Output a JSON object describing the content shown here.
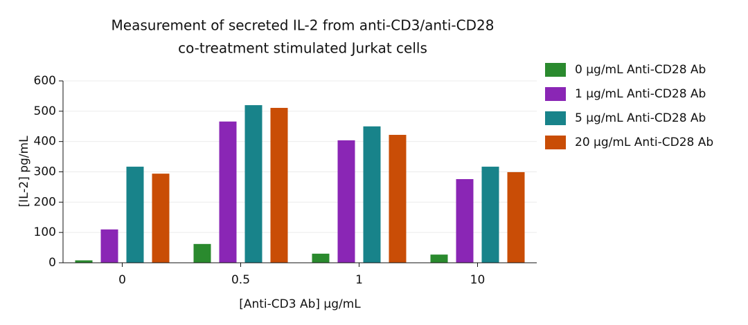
{
  "chart_data": {
    "type": "bar",
    "title": [
      "Measurement of secreted IL-2 from anti-CD3/anti-CD28",
      "co-treatment stimulated Jurkat cells"
    ],
    "x_label": "[Anti-CD3 Ab] µg/mL",
    "y_label": "[IL-2] pg/mL",
    "categories": [
      "0",
      "0.5",
      "1",
      "10"
    ],
    "series": [
      {
        "name": "0 µg/mL Anti-CD28 Ab",
        "color": "#2a8a2e",
        "values": [
          8,
          62,
          30,
          27
        ]
      },
      {
        "name": "1 µg/mL Anti-CD28 Ab",
        "color": "#8a26b5",
        "values": [
          110,
          466,
          404,
          276
        ]
      },
      {
        "name": "5 µg/mL Anti-CD28 Ab",
        "color": "#18838a",
        "values": [
          317,
          520,
          450,
          317
        ]
      },
      {
        "name": "20 µg/mL Anti-CD28 Ab",
        "color": "#c94d06",
        "values": [
          294,
          511,
          422,
          299
        ]
      }
    ],
    "ylim": [
      0,
      600
    ],
    "yticks": [
      0,
      100,
      200,
      300,
      400,
      500,
      600
    ],
    "grid": true,
    "legend": "right"
  }
}
